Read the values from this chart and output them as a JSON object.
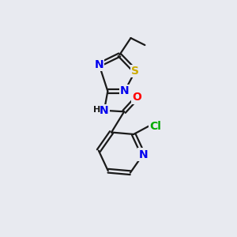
{
  "background_color": "#e8eaf0",
  "bond_color": "#1a1a1a",
  "atom_colors": {
    "N": "#0000ee",
    "S": "#ccaa00",
    "O": "#ff0000",
    "Cl": "#00aa00",
    "C": "#1a1a1a",
    "H": "#1a1a1a"
  },
  "font_size_atoms": 10,
  "font_size_small": 8,
  "figsize": [
    3.0,
    3.0
  ],
  "dpi": 100
}
